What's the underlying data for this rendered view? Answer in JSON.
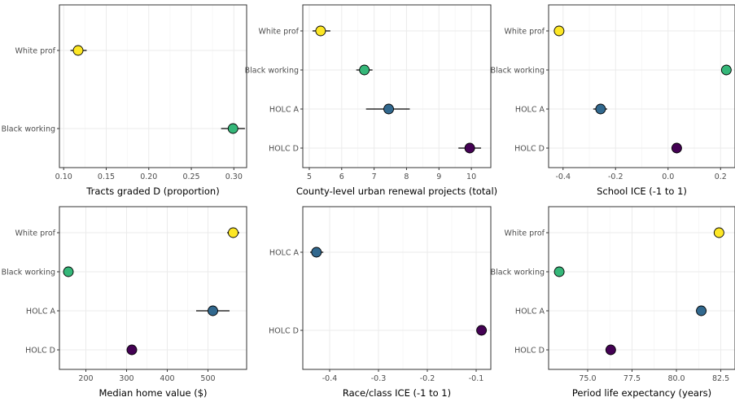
{
  "colors": {
    "White prof": "#fde725",
    "Black working": "#35b779",
    "HOLC A": "#31688e",
    "HOLC D": "#440154",
    "grid_major": "#ebebeb",
    "grid_minor": "#f5f5f5",
    "panel_border": "#333333",
    "errorbar": "#000000"
  },
  "chart_data": [
    {
      "type": "scatter",
      "xlabel": "Tracts graded D (proportion)",
      "xlim": [
        0.095,
        0.315
      ],
      "xticks": [
        0.1,
        0.15,
        0.2,
        0.25,
        0.3
      ],
      "xtick_labels": [
        "0.10",
        "0.15",
        "0.20",
        "0.25",
        "0.30"
      ],
      "categories": [
        "White prof",
        "Black working"
      ],
      "points": [
        {
          "group": "White prof",
          "value": 0.117,
          "lo": 0.108,
          "hi": 0.127
        },
        {
          "group": "Black working",
          "value": 0.299,
          "lo": 0.285,
          "hi": 0.313
        }
      ]
    },
    {
      "type": "scatter",
      "xlabel": "County-level urban renewal projects (total)",
      "xlim": [
        4.8,
        10.6
      ],
      "xticks": [
        5,
        6,
        7,
        8,
        9,
        10
      ],
      "xtick_labels": [
        "5",
        "6",
        "7",
        "8",
        "9",
        "10"
      ],
      "categories": [
        "White prof",
        "Black working",
        "HOLC A",
        "HOLC D"
      ],
      "points": [
        {
          "group": "White prof",
          "value": 5.35,
          "lo": 5.1,
          "hi": 5.65
        },
        {
          "group": "Black working",
          "value": 6.7,
          "lo": 6.45,
          "hi": 6.95
        },
        {
          "group": "HOLC A",
          "value": 7.45,
          "lo": 6.75,
          "hi": 8.1
        },
        {
          "group": "HOLC D",
          "value": 9.95,
          "lo": 9.6,
          "hi": 10.3
        }
      ]
    },
    {
      "type": "scatter",
      "xlabel": "School ICE (-1 to 1)",
      "xlim": [
        -0.455,
        0.255
      ],
      "xticks": [
        -0.4,
        -0.2,
        0.0,
        0.2
      ],
      "xtick_labels": [
        "-0.4",
        "-0.2",
        "0.0",
        "0.2"
      ],
      "categories": [
        "White prof",
        "Black working",
        "HOLC A",
        "HOLC D"
      ],
      "points": [
        {
          "group": "White prof",
          "value": -0.415,
          "lo": -0.418,
          "hi": -0.412
        },
        {
          "group": "Black working",
          "value": 0.222,
          "lo": 0.219,
          "hi": 0.225
        },
        {
          "group": "HOLC A",
          "value": -0.257,
          "lo": -0.285,
          "hi": -0.232
        },
        {
          "group": "HOLC D",
          "value": 0.033,
          "lo": 0.031,
          "hi": 0.036
        }
      ]
    },
    {
      "type": "scatter",
      "xlabel": "Median home value ($)",
      "xlim": [
        135,
        595
      ],
      "xticks": [
        200,
        300,
        400,
        500
      ],
      "xtick_labels": [
        "200",
        "300",
        "400",
        "500"
      ],
      "categories": [
        "White prof",
        "Black working",
        "HOLC A",
        "HOLC D"
      ],
      "points": [
        {
          "group": "White prof",
          "value": 562,
          "lo": 547,
          "hi": 577
        },
        {
          "group": "Black working",
          "value": 157,
          "lo": 155,
          "hi": 159
        },
        {
          "group": "HOLC A",
          "value": 512,
          "lo": 471,
          "hi": 553
        },
        {
          "group": "HOLC D",
          "value": 313,
          "lo": 309,
          "hi": 317
        }
      ]
    },
    {
      "type": "scatter",
      "xlabel": "Race/class ICE (-1 to 1)",
      "xlim": [
        -0.455,
        -0.07
      ],
      "xticks": [
        -0.4,
        -0.3,
        -0.2,
        -0.1
      ],
      "xtick_labels": [
        "-0.4",
        "-0.3",
        "-0.2",
        "-0.1"
      ],
      "categories": [
        "HOLC A",
        "HOLC D"
      ],
      "points": [
        {
          "group": "HOLC A",
          "value": -0.427,
          "lo": -0.44,
          "hi": -0.413
        },
        {
          "group": "HOLC D",
          "value": -0.089,
          "lo": -0.091,
          "hi": -0.087
        }
      ]
    },
    {
      "type": "scatter",
      "xlabel": "Period life expectancy (years)",
      "xlim": [
        72.8,
        83.3
      ],
      "xticks": [
        75.0,
        77.5,
        80.0,
        82.5
      ],
      "xtick_labels": [
        "75.0",
        "77.5",
        "80.0",
        "82.5"
      ],
      "categories": [
        "White prof",
        "Black working",
        "HOLC A",
        "HOLC D"
      ],
      "points": [
        {
          "group": "White prof",
          "value": 82.4,
          "lo": 82.35,
          "hi": 82.45
        },
        {
          "group": "Black working",
          "value": 73.4,
          "lo": 73.35,
          "hi": 73.45
        },
        {
          "group": "HOLC A",
          "value": 81.4,
          "lo": 81.15,
          "hi": 81.65
        },
        {
          "group": "HOLC D",
          "value": 76.3,
          "lo": 76.25,
          "hi": 76.35
        }
      ]
    }
  ]
}
